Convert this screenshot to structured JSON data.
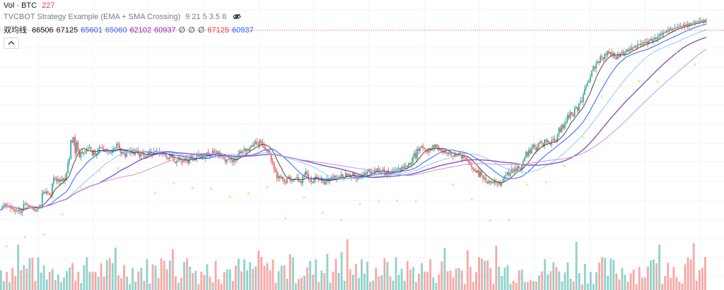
{
  "legend": {
    "volume": {
      "label": "Vol · BTC",
      "value": "227",
      "value_color": "#f23645"
    },
    "strategy": {
      "label": "TVCBOT Strategy Example (EMA + SMA Crossing)",
      "params": "9 21 5 3.5 8"
    },
    "ma": {
      "label": "双均线",
      "values": [
        {
          "text": "66506",
          "color": "#131722"
        },
        {
          "text": "67125",
          "color": "#131722"
        },
        {
          "text": "65601",
          "color": "#2962ff"
        },
        {
          "text": "65060",
          "color": "#2962ff"
        },
        {
          "text": "62102",
          "color": "#9c27b0"
        },
        {
          "text": "60937",
          "color": "#9c27b0"
        },
        {
          "text": "∅",
          "color": "#131722"
        },
        {
          "text": "∅",
          "color": "#131722"
        },
        {
          "text": "∅",
          "color": "#131722"
        },
        {
          "text": "67125",
          "color": "#f23645"
        },
        {
          "text": "60937",
          "color": "#2962ff"
        }
      ]
    }
  },
  "icons": {
    "visibility": "eye-off-icon",
    "collapse": "chevron-up-icon"
  },
  "colors": {
    "up": "#26a69a",
    "down": "#ef5350",
    "ma_fast": "#5d4037",
    "ma_blue": "#2962ff",
    "ma_purple": "#7e57c2",
    "markers": "#fbe38a",
    "price_line": "#ef5350"
  },
  "chart_data": {
    "type": "candlestick",
    "title": "",
    "price_range": [
      52500,
      72000
    ],
    "current_price": 67125,
    "close_series": [
      60.8,
      61.2,
      61.6,
      61.9,
      61.6,
      61.4,
      61.5,
      61.1,
      61.0,
      60.8,
      60.5,
      60.6,
      60.7,
      60.5,
      60.2,
      60.6,
      61.9,
      62.0,
      61.8,
      61.4,
      61.6,
      61.4,
      61.2,
      60.7,
      60.5,
      60.8,
      61.3,
      61.6,
      61.8,
      64.1,
      64.3,
      64.0,
      64.4,
      64.1,
      63.7,
      63.6,
      65.9,
      67.1,
      67.0,
      66.4,
      66.8,
      66.3,
      66.8,
      66.4,
      67.0,
      66.6,
      68.1,
      70.2,
      70.8,
      74.5,
      74.0,
      75.1,
      71.9,
      74.1,
      72.3,
      71.1,
      72.2,
      71.8,
      72.0,
      72.4,
      72.7,
      73.0,
      73.1,
      72.6,
      71.5,
      72.3,
      71.6,
      71.8,
      72.7,
      73.1,
      73.0,
      72.8,
      72.2,
      72.4,
      72.5,
      72.2,
      72.0,
      72.0,
      72.5,
      72.8,
      73.0,
      73.8,
      73.6,
      72.9,
      71.8,
      72.2,
      71.8,
      71.2,
      72.4,
      72.1,
      72.5,
      71.9,
      72.3,
      71.7,
      72.2,
      72.5,
      71.8,
      71.2,
      72.0,
      71.9,
      71.2,
      71.0,
      71.3,
      72.0,
      72.4,
      71.8,
      71.7,
      72.2,
      72.4,
      72.0,
      71.8,
      72.3,
      71.7,
      72.0,
      71.8,
      71.3,
      71.0,
      70.8,
      71.2,
      71.6,
      71.0,
      70.3,
      70.0,
      70.4,
      71.2,
      70.8,
      70.5,
      70.2,
      70.5,
      71.0,
      70.6,
      70.0,
      70.8,
      71.4,
      71.0,
      70.6,
      70.9,
      71.7,
      71.2,
      71.6,
      71.1,
      71.5,
      71.0,
      71.4,
      72.1,
      72.0,
      71.3,
      71.6,
      72.4,
      72.0,
      71.8,
      72.3,
      71.6,
      71.8,
      71.4,
      71.1,
      70.8,
      70.2,
      70.6,
      70.8,
      71.0,
      70.6,
      70.2,
      70.8,
      70.5,
      70.9,
      71.8,
      72.3,
      71.9,
      72.4,
      72.8,
      72.3,
      72.8,
      72.4,
      73.1,
      73.5,
      73.2,
      73.7,
      74.2,
      73.7,
      73.5,
      74.4,
      74.0,
      73.4,
      73.0,
      72.6,
      72.2,
      72.5,
      71.8,
      70.4,
      70.0,
      68.7,
      68.3,
      67.0,
      67.5,
      67.0,
      67.3,
      66.7,
      66.2,
      66.0,
      66.9,
      67.3,
      66.8,
      66.5,
      66.7,
      66.9,
      67.0,
      67.2,
      66.3,
      66.5,
      66.0,
      67.4,
      67.5,
      68.3,
      67.8,
      66.7,
      66.8,
      66.3,
      66.1,
      66.8,
      67.3,
      67.0,
      66.7,
      66.6,
      67.0,
      66.3,
      65.8,
      66.3,
      66.9,
      66.4,
      66.8,
      67.2,
      66.9,
      67.5,
      67.2,
      66.7,
      67.1,
      67.4,
      67.8,
      67.0,
      67.1,
      68.0,
      67.4,
      67.8,
      67.2,
      67.6,
      68.0,
      67.6,
      67.0,
      66.8,
      67.3,
      67.1,
      67.3,
      67.5,
      68.0,
      67.7,
      68.3,
      68.8,
      67.9,
      68.2,
      68.3,
      68.6,
      68.2,
      68.9,
      68.6,
      68.0,
      68.3,
      68.8,
      68.0,
      67.6,
      68.4,
      68.0,
      67.7,
      68.1,
      68.5,
      68.3,
      68.5,
      68.8,
      69.0,
      68.6,
      69.2,
      68.9,
      69.4,
      69.5,
      69.2,
      70.0,
      69.7,
      70.2,
      71.2,
      72.0,
      70.9,
      72.8,
      72.4,
      73.0,
      73.3,
      73.0,
      72.8,
      72.3,
      72.1,
      72.9,
      72.5,
      72.7,
      73.5,
      73.0,
      73.6,
      73.2,
      72.5,
      72.8,
      72.2,
      72.0,
      72.5,
      72.0,
      71.8,
      72.1,
      71.7,
      71.4,
      71.2,
      71.7,
      71.3,
      71.6,
      72.0,
      71.5,
      70.9,
      71.3,
      71.1,
      70.8,
      70.4,
      70.1,
      69.6,
      69.2,
      68.8,
      68.5,
      68.1,
      68.6,
      67.2,
      68.3,
      67.5,
      66.9,
      67.1,
      66.3,
      66.0,
      66.5,
      66.1,
      66.3,
      66.0,
      66.4,
      66.1,
      66.0,
      66.3,
      65.6,
      66.2,
      67.0,
      67.3,
      67.6,
      68.2,
      67.5,
      68.0,
      68.8,
      68.2,
      68.9,
      68.4,
      69.4,
      69.0,
      68.7,
      69.6,
      70.4,
      71.0,
      72.2,
      71.4,
      72.6,
      71.9,
      73.0,
      73.6,
      73.0,
      72.5,
      73.2,
      74.0,
      74.2,
      73.9,
      73.3,
      74.6,
      74.1,
      74.4,
      74.0,
      73.6,
      74.5,
      74.7,
      74.4,
      74.2,
      75.5,
      76.9,
      76.1,
      77.5,
      76.8,
      77.8,
      78.2,
      79.5,
      78.8,
      80.0,
      79.6,
      79.2,
      80.8,
      81.0,
      80.3,
      81.7,
      82.2,
      82.0,
      83.5,
      84.6,
      85.2,
      85.8,
      86.1,
      87.0,
      88.2,
      89.0,
      88.6,
      89.6,
      90.0,
      89.7,
      91.0,
      90.8,
      90.4,
      91.5,
      91.2,
      92.0,
      91.5,
      91.8,
      91.2,
      91.6,
      90.8,
      90.4,
      91.2,
      90.9,
      91.6,
      91.9,
      91.3,
      91.7,
      92.3,
      91.9,
      92.5,
      92.2,
      92.8,
      92.7,
      93.1,
      92.8,
      93.4,
      93.2,
      93.5,
      93.3,
      93.7,
      93.6,
      93.9,
      93.5,
      94.1,
      94.4,
      94.0,
      94.3,
      94.7,
      94.4,
      94.8,
      95.1,
      95.5,
      95.2,
      95.7,
      95.6,
      96.1,
      95.9,
      96.3,
      96.1,
      96.5,
      96.4,
      96.7,
      96.6,
      96.9,
      96.8,
      97.0,
      96.9,
      97.2,
      97.0,
      97.3,
      97.1,
      97.5,
      97.4,
      97.6,
      97.5,
      97.8,
      97.7,
      97.9,
      97.8,
      98.0,
      97.9,
      98.1,
      98.0,
      98.2
    ]
  }
}
